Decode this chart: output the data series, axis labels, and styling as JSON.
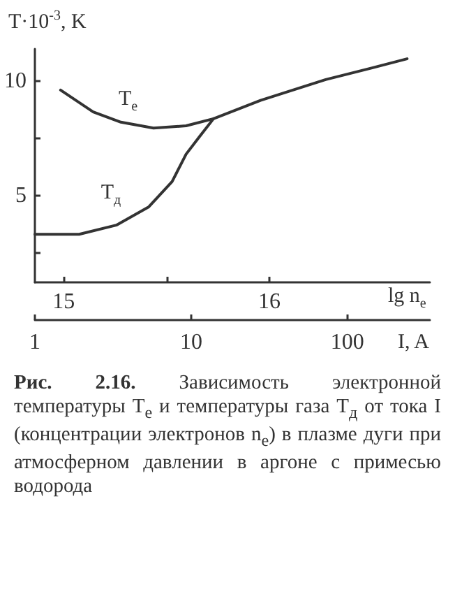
{
  "chart_data": {
    "type": "line",
    "ylabel": "T·10$^{-3}$, K",
    "xlabel": "I, A",
    "x2label": "lg n$_{e}$",
    "annotations": [
      "Рис. 2.16.",
      "Зависимость электронной температуры T$_{e}$ и температуры газа T$_{д}$ от тока I (концентрации электронов n$_{e}$) в плазме дуги при атмосферном давлении в аргоне с примесью водорода"
    ],
    "log": "x",
    "xlim": [
      1,
      337
    ],
    "xticks": [
      1,
      10,
      100
    ],
    "x2lim": [
      14.86,
      16.78
    ],
    "x2ticks": [
      15,
      {
        "value": 15.5,
        "label": null
      },
      16
    ],
    "ylim": [
      1.2,
      11.4
    ],
    "yticks": [
      {
        "value": 2.5,
        "label": null
      },
      5,
      {
        "value": 7.5,
        "label": null
      },
      10
    ],
    "grid": false,
    "marker": "none",
    "line_style": "solid",
    "series": [
      {
        "name": "T$_{e}$",
        "color": "#333333",
        "x": [
          1.46,
          2.36,
          3.55,
          5.74,
          9.28,
          13.9,
          27.8,
          72.6,
          144,
          241
        ],
        "values": [
          9.6,
          8.65,
          8.2,
          7.94,
          8.04,
          8.35,
          9.15,
          10.06,
          10.57,
          10.97
        ]
      },
      {
        "name": "T$_{д}$",
        "color": "#333333",
        "x": [
          1,
          1.92,
          3.32,
          5.36,
          7.55,
          9.28,
          11.4,
          13.9
        ],
        "values": [
          3.3,
          3.3,
          3.7,
          4.5,
          5.6,
          6.8,
          7.6,
          8.35
        ]
      }
    ]
  }
}
